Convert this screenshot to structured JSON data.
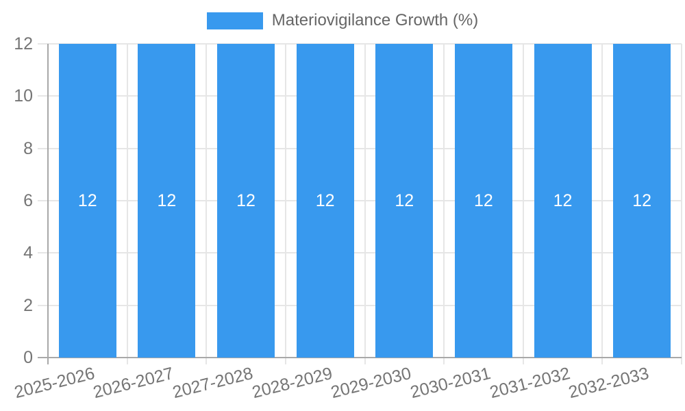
{
  "chart_data": {
    "type": "bar",
    "title": "Materiovigilance Growth (%)",
    "legend_position": "top",
    "grid": true,
    "categories": [
      "2025-2026",
      "2026-2027",
      "2027-2028",
      "2028-2029",
      "2029-2030",
      "2030-2031",
      "2031-2032",
      "2032-2033"
    ],
    "values": [
      12,
      12,
      12,
      12,
      12,
      12,
      12,
      12
    ],
    "bar_labels": [
      "12",
      "12",
      "12",
      "12",
      "12",
      "12",
      "12",
      "12"
    ],
    "xlabel": "",
    "ylabel": "",
    "ylim": [
      0,
      12
    ],
    "yticks": [
      0,
      2,
      4,
      6,
      8,
      10,
      12
    ],
    "colors": {
      "bar": "#3899ee",
      "bar_label": "#ffffff",
      "grid": "#e6e6e6",
      "axis": "#a8a8a8",
      "tick_text": "#757575",
      "legend_text": "#666666"
    }
  }
}
